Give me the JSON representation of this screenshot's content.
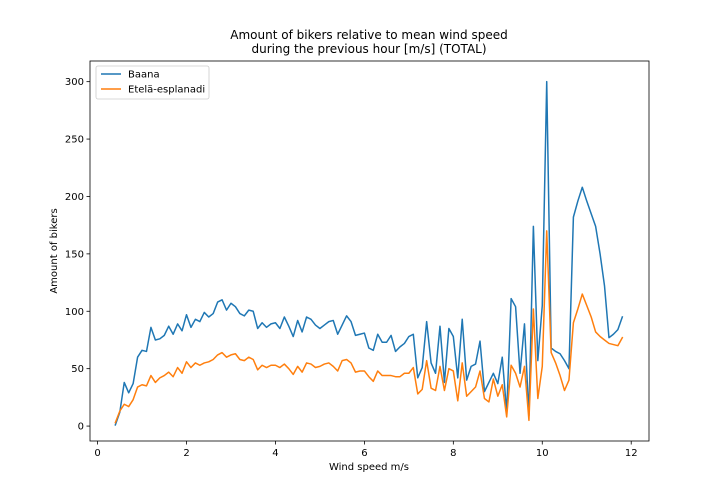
{
  "chart_data": {
    "type": "line",
    "title": [
      "Amount of bikers relative to mean wind speed",
      "during the previous hour [m/s] (TOTAL)"
    ],
    "xlabel": "Wind speed m/s",
    "ylabel": "Amount of bikers",
    "xlim": [
      -0.17,
      12.4
    ],
    "ylim": [
      -13,
      318
    ],
    "xticks": [
      0,
      2,
      4,
      6,
      8,
      10,
      12
    ],
    "yticks": [
      0,
      50,
      100,
      150,
      200,
      250,
      300
    ],
    "grid": false,
    "legend_position": "top-left",
    "colors": {
      "Baana": "#1f77b4",
      "Etelä-esplanadi": "#ff7f0e"
    },
    "series": [
      {
        "name": "Baana",
        "x": [
          0.4,
          0.5,
          0.6,
          0.7,
          0.8,
          0.9,
          1.0,
          1.1,
          1.2,
          1.3,
          1.4,
          1.5,
          1.6,
          1.7,
          1.8,
          1.9,
          2.0,
          2.1,
          2.2,
          2.3,
          2.4,
          2.5,
          2.6,
          2.7,
          2.8,
          2.9,
          3.0,
          3.1,
          3.2,
          3.3,
          3.4,
          3.5,
          3.6,
          3.7,
          3.8,
          3.9,
          4.0,
          4.1,
          4.2,
          4.3,
          4.4,
          4.5,
          4.6,
          4.7,
          4.8,
          4.9,
          5.0,
          5.1,
          5.2,
          5.3,
          5.4,
          5.5,
          5.6,
          5.7,
          5.8,
          5.9,
          6.0,
          6.1,
          6.2,
          6.3,
          6.4,
          6.5,
          6.6,
          6.7,
          6.8,
          6.9,
          7.0,
          7.1,
          7.2,
          7.3,
          7.4,
          7.5,
          7.6,
          7.7,
          7.8,
          7.9,
          8.0,
          8.1,
          8.2,
          8.3,
          8.4,
          8.5,
          8.6,
          8.7,
          8.8,
          8.9,
          9.0,
          9.1,
          9.2,
          9.3,
          9.4,
          9.5,
          9.6,
          9.7,
          9.8,
          9.9,
          10.0,
          10.1,
          10.2,
          10.3,
          10.4,
          10.5,
          10.6,
          10.7,
          10.8,
          10.9,
          11.0,
          11.1,
          11.2,
          11.3,
          11.4,
          11.5,
          11.6,
          11.7,
          11.8
        ],
        "values": [
          1,
          12,
          38,
          29,
          37,
          60,
          66,
          65,
          86,
          75,
          76,
          79,
          87,
          80,
          89,
          83,
          97,
          86,
          93,
          91,
          99,
          95,
          98,
          108,
          110,
          101,
          107,
          104,
          98,
          96,
          101,
          100,
          85,
          90,
          86,
          89,
          90,
          85,
          95,
          87,
          78,
          92,
          82,
          95,
          93,
          88,
          85,
          88,
          91,
          92,
          80,
          88,
          96,
          91,
          79,
          80,
          81,
          68,
          66,
          80,
          73,
          73,
          79,
          65,
          69,
          72,
          78,
          80,
          42,
          51,
          91,
          55,
          46,
          87,
          38,
          85,
          78,
          42,
          93,
          40,
          52,
          54,
          74,
          30,
          38,
          46,
          37,
          60,
          12,
          111,
          104,
          46,
          89,
          9,
          174,
          57,
          105,
          300,
          68,
          65,
          63,
          57,
          50,
          182,
          196,
          208,
          196,
          185,
          174,
          150,
          122,
          77,
          80,
          84,
          95
        ]
      },
      {
        "name": "Etelä-esplanadi",
        "x": [
          0.4,
          0.5,
          0.6,
          0.7,
          0.8,
          0.9,
          1.0,
          1.1,
          1.2,
          1.3,
          1.4,
          1.5,
          1.6,
          1.7,
          1.8,
          1.9,
          2.0,
          2.1,
          2.2,
          2.3,
          2.4,
          2.5,
          2.6,
          2.7,
          2.8,
          2.9,
          3.0,
          3.1,
          3.2,
          3.3,
          3.4,
          3.5,
          3.6,
          3.7,
          3.8,
          3.9,
          4.0,
          4.1,
          4.2,
          4.3,
          4.4,
          4.5,
          4.6,
          4.7,
          4.8,
          4.9,
          5.0,
          5.1,
          5.2,
          5.3,
          5.4,
          5.5,
          5.6,
          5.7,
          5.8,
          5.9,
          6.0,
          6.1,
          6.2,
          6.3,
          6.4,
          6.5,
          6.6,
          6.7,
          6.8,
          6.9,
          7.0,
          7.1,
          7.2,
          7.3,
          7.4,
          7.5,
          7.6,
          7.7,
          7.8,
          7.9,
          8.0,
          8.1,
          8.2,
          8.3,
          8.4,
          8.5,
          8.6,
          8.7,
          8.8,
          8.9,
          9.0,
          9.1,
          9.2,
          9.3,
          9.4,
          9.5,
          9.6,
          9.7,
          9.8,
          9.9,
          10.0,
          10.1,
          10.2,
          10.3,
          10.4,
          10.5,
          10.6,
          10.7,
          10.8,
          10.9,
          11.0,
          11.1,
          11.2,
          11.3,
          11.4,
          11.5,
          11.6,
          11.7,
          11.8
        ],
        "values": [
          3,
          13,
          19,
          17,
          23,
          34,
          36,
          35,
          44,
          38,
          42,
          44,
          47,
          43,
          51,
          46,
          56,
          51,
          55,
          53,
          55,
          56,
          58,
          62,
          64,
          60,
          62,
          63,
          58,
          57,
          60,
          58,
          49,
          53,
          51,
          53,
          53,
          51,
          54,
          50,
          45,
          52,
          47,
          55,
          54,
          51,
          52,
          54,
          55,
          52,
          48,
          57,
          58,
          55,
          47,
          48,
          48,
          43,
          39,
          48,
          44,
          44,
          44,
          43,
          43,
          46,
          46,
          51,
          28,
          32,
          57,
          33,
          31,
          52,
          31,
          50,
          48,
          22,
          55,
          26,
          30,
          34,
          48,
          24,
          21,
          41,
          26,
          36,
          8,
          53,
          46,
          34,
          52,
          5,
          102,
          24,
          52,
          170,
          64,
          55,
          44,
          31,
          40,
          90,
          102,
          115,
          105,
          95,
          82,
          78,
          75,
          72,
          71,
          70,
          77
        ]
      }
    ]
  }
}
